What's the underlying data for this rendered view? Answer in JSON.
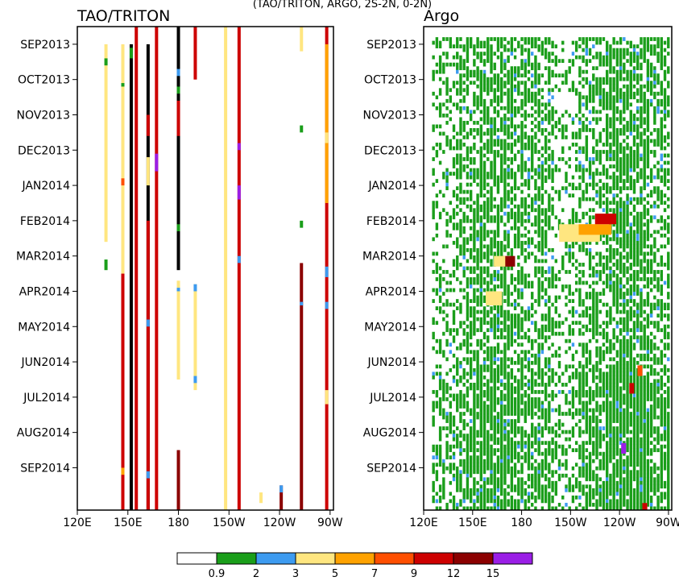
{
  "figure": {
    "suptitle": "(TAO/TRITON, ARGO, 2S-2N, 0-2N)"
  },
  "chart_data": [
    {
      "type": "heatmap",
      "title": "TAO/TRITON",
      "x_ticks": [
        "120E",
        "150E",
        "180",
        "150W",
        "120W",
        "90W"
      ],
      "x_tick_lon": [
        120,
        150,
        180,
        210,
        240,
        270
      ],
      "xlim_lon": [
        120,
        272
      ],
      "y_ticks": [
        "SEP2013",
        "OCT2013",
        "NOV2013",
        "DEC2013",
        "JAN2014",
        "FEB2014",
        "MAR2014",
        "APR2014",
        "MAY2014",
        "JUN2014",
        "JUL2014",
        "AUG2014",
        "SEP2014"
      ],
      "ylim_months": [
        -0.5,
        13.2
      ],
      "columns": [
        {
          "lon": 137,
          "segments": [
            [
              0,
              5.6,
              3
            ],
            [
              0.4,
              0.6,
              10
            ],
            [
              6.1,
              6.4,
              1
            ]
          ]
        },
        {
          "lon": 147,
          "segments": [
            [
              0,
              6.5,
              3
            ],
            [
              6.5,
              13.2,
              11
            ],
            [
              1.1,
              1.2,
              1
            ],
            [
              3.8,
              4.0,
              7
            ],
            [
              12.0,
              12.2,
              5
            ]
          ]
        },
        {
          "lon": 152,
          "segments": [
            [
              0,
              13.2,
              4
            ],
            [
              0.1,
              0.4,
              1
            ]
          ]
        },
        {
          "lon": 155,
          "segments": [
            [
              -0.5,
              13.2,
              11
            ]
          ]
        },
        {
          "lon": 162,
          "segments": [
            [
              0,
              13.2,
              4
            ],
            [
              2.0,
              2.6,
              11
            ],
            [
              3.2,
              4.0,
              3
            ],
            [
              5.0,
              13.2,
              11
            ],
            [
              7.8,
              8.0,
              2
            ],
            [
              12.1,
              12.3,
              2
            ]
          ]
        },
        {
          "lon": 167,
          "segments": [
            [
              -0.5,
              13.2,
              11
            ],
            [
              3.1,
              3.6,
              13
            ]
          ]
        },
        {
          "lon": 180,
          "segments": [
            [
              -0.5,
              6.4,
              4
            ],
            [
              0.7,
              0.9,
              2
            ],
            [
              1.2,
              1.4,
              1
            ],
            [
              1.6,
              2.6,
              11
            ],
            [
              5.1,
              5.3,
              1
            ],
            [
              6.7,
              9.5,
              3
            ],
            [
              6.9,
              7.0,
              2
            ],
            [
              11.5,
              13.2,
              12
            ]
          ]
        },
        {
          "lon": 190,
          "segments": [
            [
              -0.5,
              1.0,
              11
            ],
            [
              6.8,
              9.8,
              3
            ],
            [
              6.8,
              7.0,
              2
            ],
            [
              9.4,
              9.6,
              2
            ]
          ]
        },
        {
          "lon": 208,
          "segments": [
            [
              -0.5,
              13.2,
              3
            ]
          ]
        },
        {
          "lon": 216,
          "segments": [
            [
              -0.5,
              13.2,
              11
            ],
            [
              2.8,
              3.0,
              13
            ],
            [
              4.0,
              4.4,
              13
            ],
            [
              6.0,
              6.2,
              2
            ]
          ]
        },
        {
          "lon": 229,
          "segments": [
            [
              12.7,
              13.0,
              3
            ]
          ]
        },
        {
          "lon": 241,
          "segments": [
            [
              12.5,
              13.2,
              12
            ],
            [
              12.5,
              12.7,
              2
            ]
          ]
        },
        {
          "lon": 253,
          "segments": [
            [
              -0.5,
              0.2,
              3
            ],
            [
              2.3,
              2.5,
              1
            ],
            [
              5.0,
              5.2,
              1
            ],
            [
              6.2,
              13.2,
              12
            ],
            [
              7.3,
              7.4,
              2
            ]
          ]
        },
        {
          "lon": 268,
          "segments": [
            [
              -0.5,
              13.2,
              11
            ],
            [
              0.0,
              4.5,
              5
            ],
            [
              2.5,
              2.8,
              3
            ],
            [
              6.3,
              6.6,
              2
            ],
            [
              7.3,
              7.5,
              2
            ],
            [
              9.8,
              10.2,
              3
            ]
          ]
        }
      ]
    },
    {
      "type": "heatmap",
      "title": "Argo",
      "x_ticks": [
        "120E",
        "150E",
        "180",
        "150W",
        "120W",
        "90W"
      ],
      "x_tick_lon": [
        120,
        150,
        180,
        210,
        240,
        270
      ],
      "xlim_lon": [
        120,
        272
      ],
      "y_ticks": [
        "SEP2013",
        "OCT2013",
        "NOV2013",
        "DEC2013",
        "JAN2014",
        "FEB2014",
        "MAR2014",
        "APR2014",
        "MAY2014",
        "JUN2014",
        "JUL2014",
        "AUG2014",
        "SEP2014"
      ],
      "ylim_months": [
        -0.5,
        13.2
      ],
      "pattern": "dense green floats with scattered light blue; warm event near FEB-MAR2014 around 170E-120W",
      "warm_events": [
        {
          "lon0": 203,
          "lon1": 228,
          "m0": 5.1,
          "m1": 5.6,
          "c": 3
        },
        {
          "lon0": 215,
          "lon1": 235,
          "m0": 5.1,
          "m1": 5.4,
          "c": 5
        },
        {
          "lon0": 225,
          "lon1": 238,
          "m0": 4.8,
          "m1": 5.1,
          "c": 11
        },
        {
          "lon0": 168,
          "lon1": 176,
          "m0": 6.0,
          "m1": 6.3,
          "c": 12
        },
        {
          "lon0": 163,
          "lon1": 170,
          "m0": 6.0,
          "m1": 6.3,
          "c": 3
        },
        {
          "lon0": 158,
          "lon1": 168,
          "m0": 7.0,
          "m1": 7.4,
          "c": 3
        },
        {
          "lon0": 246,
          "lon1": 249,
          "m0": 9.6,
          "m1": 9.9,
          "c": 11
        },
        {
          "lon0": 251,
          "lon1": 254,
          "m0": 9.1,
          "m1": 9.4,
          "c": 7
        },
        {
          "lon0": 241,
          "lon1": 244,
          "m0": 11.3,
          "m1": 11.6,
          "c": 13
        },
        {
          "lon0": 254,
          "lon1": 257,
          "m0": 13.0,
          "m1": 13.2,
          "c": 11
        }
      ]
    }
  ],
  "colorbar": {
    "labels": [
      "0.9",
      "2",
      "3",
      "5",
      "7",
      "9",
      "12",
      "15"
    ],
    "colors": [
      "#ffffff",
      "#1a9e1a",
      "#3d9bf0",
      "#ffe680",
      "#ffa200",
      "#ff4f00",
      "#cd0000",
      "#8b0000",
      "#9a1ee6"
    ]
  },
  "category_colors": {
    "1": "#1a9e1a",
    "2": "#3d9bf0",
    "3": "#ffe680",
    "5": "#ffa200",
    "7": "#ff4f00",
    "10": "#1a9e1a",
    "11": "#cd0000",
    "12": "#8b0000",
    "13": "#9a1ee6"
  }
}
